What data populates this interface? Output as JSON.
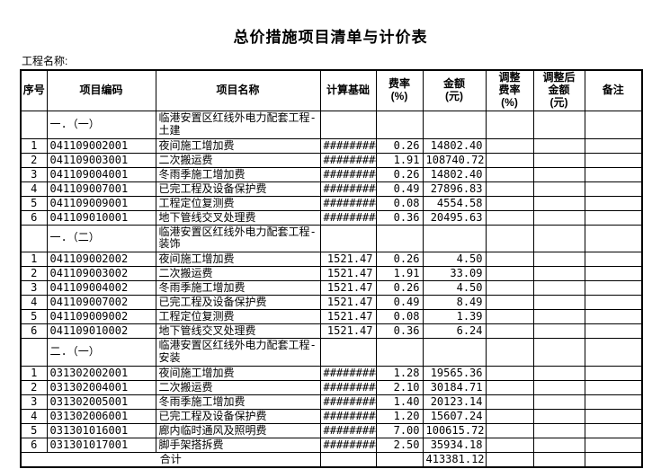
{
  "page": {
    "title": "总价措施项目清单与计价表",
    "project_name_label": "工程名称:"
  },
  "table": {
    "headers": {
      "seq": "序号",
      "code": "项目编码",
      "name": "项目名称",
      "basis": "计算基础",
      "rate": "费率\n(%)",
      "amount": "金额\n(元)",
      "adj_rate": "调整\n费率\n(%)",
      "adj_amount": "调整后\n金额\n(元)",
      "note": "备注"
    },
    "rows": [
      {
        "type": "section",
        "seq": "",
        "code": "一.（一）",
        "name": "临港安置区红线外电力配套工程-土建",
        "basis": "",
        "rate": "",
        "amount": "",
        "adj_rate": "",
        "adj_amount": "",
        "note": ""
      },
      {
        "type": "item",
        "seq": "1",
        "code": "041109002001",
        "name": "夜间施工增加费",
        "basis": "#########",
        "rate": "0.26",
        "amount": "14802.40",
        "adj_rate": "",
        "adj_amount": "",
        "note": ""
      },
      {
        "type": "item",
        "seq": "2",
        "code": "041109003001",
        "name": "二次搬运费",
        "basis": "#########",
        "rate": "1.91",
        "amount": "108740.72",
        "adj_rate": "",
        "adj_amount": "",
        "note": ""
      },
      {
        "type": "item",
        "seq": "3",
        "code": "041109004001",
        "name": "冬雨季施工增加费",
        "basis": "#########",
        "rate": "0.26",
        "amount": "14802.40",
        "adj_rate": "",
        "adj_amount": "",
        "note": ""
      },
      {
        "type": "item",
        "seq": "4",
        "code": "041109007001",
        "name": "已完工程及设备保护费",
        "basis": "#########",
        "rate": "0.49",
        "amount": "27896.83",
        "adj_rate": "",
        "adj_amount": "",
        "note": ""
      },
      {
        "type": "item",
        "seq": "5",
        "code": "041109009001",
        "name": "工程定位复测费",
        "basis": "#########",
        "rate": "0.08",
        "amount": "4554.58",
        "adj_rate": "",
        "adj_amount": "",
        "note": ""
      },
      {
        "type": "item",
        "seq": "6",
        "code": "041109010001",
        "name": "地下管线交叉处理费",
        "basis": "#########",
        "rate": "0.36",
        "amount": "20495.63",
        "adj_rate": "",
        "adj_amount": "",
        "note": ""
      },
      {
        "type": "section",
        "seq": "",
        "code": "一.（二）",
        "name": "临港安置区红线外电力配套工程-装饰",
        "basis": "",
        "rate": "",
        "amount": "",
        "adj_rate": "",
        "adj_amount": "",
        "note": ""
      },
      {
        "type": "item",
        "seq": "1",
        "code": "041109002002",
        "name": "夜间施工增加费",
        "basis": "1521.47",
        "rate": "0.26",
        "amount": "4.50",
        "adj_rate": "",
        "adj_amount": "",
        "note": ""
      },
      {
        "type": "item",
        "seq": "2",
        "code": "041109003002",
        "name": "二次搬运费",
        "basis": "1521.47",
        "rate": "1.91",
        "amount": "33.09",
        "adj_rate": "",
        "adj_amount": "",
        "note": ""
      },
      {
        "type": "item",
        "seq": "3",
        "code": "041109004002",
        "name": "冬雨季施工增加费",
        "basis": "1521.47",
        "rate": "0.26",
        "amount": "4.50",
        "adj_rate": "",
        "adj_amount": "",
        "note": ""
      },
      {
        "type": "item",
        "seq": "4",
        "code": "041109007002",
        "name": "已完工程及设备保护费",
        "basis": "1521.47",
        "rate": "0.49",
        "amount": "8.49",
        "adj_rate": "",
        "adj_amount": "",
        "note": ""
      },
      {
        "type": "item",
        "seq": "5",
        "code": "041109009002",
        "name": "工程定位复测费",
        "basis": "1521.47",
        "rate": "0.08",
        "amount": "1.39",
        "adj_rate": "",
        "adj_amount": "",
        "note": ""
      },
      {
        "type": "item",
        "seq": "6",
        "code": "041109010002",
        "name": "地下管线交叉处理费",
        "basis": "1521.47",
        "rate": "0.36",
        "amount": "6.24",
        "adj_rate": "",
        "adj_amount": "",
        "note": ""
      },
      {
        "type": "section",
        "seq": "",
        "code": "二.（一）",
        "name": "临港安置区红线外电力配套工程-安装",
        "basis": "",
        "rate": "",
        "amount": "",
        "adj_rate": "",
        "adj_amount": "",
        "note": ""
      },
      {
        "type": "item",
        "seq": "1",
        "code": "031302002001",
        "name": "夜间施工增加费",
        "basis": "#########",
        "rate": "1.28",
        "amount": "19565.36",
        "adj_rate": "",
        "adj_amount": "",
        "note": ""
      },
      {
        "type": "item",
        "seq": "2",
        "code": "031302004001",
        "name": "二次搬运费",
        "basis": "#########",
        "rate": "2.10",
        "amount": "30184.71",
        "adj_rate": "",
        "adj_amount": "",
        "note": ""
      },
      {
        "type": "item",
        "seq": "3",
        "code": "031302005001",
        "name": "冬雨季施工增加费",
        "basis": "#########",
        "rate": "1.40",
        "amount": "20123.14",
        "adj_rate": "",
        "adj_amount": "",
        "note": ""
      },
      {
        "type": "item",
        "seq": "4",
        "code": "031302006001",
        "name": "已完工程及设备保护费",
        "basis": "#########",
        "rate": "1.20",
        "amount": "15607.24",
        "adj_rate": "",
        "adj_amount": "",
        "note": ""
      },
      {
        "type": "item",
        "seq": "5",
        "code": "031301016001",
        "name": "廊内临时通风及照明费",
        "basis": "#########",
        "rate": "7.00",
        "amount": "100615.72",
        "adj_rate": "",
        "adj_amount": "",
        "note": ""
      },
      {
        "type": "item",
        "seq": "6",
        "code": "031301017001",
        "name": "脚手架搭拆费",
        "basis": "#########",
        "rate": "2.50",
        "amount": "35934.18",
        "adj_rate": "",
        "adj_amount": "",
        "note": ""
      }
    ],
    "footer": {
      "label": "合计",
      "basis": "",
      "rate": "",
      "amount": "413381.12",
      "adj_rate": "",
      "adj_amount": "",
      "note": ""
    }
  }
}
